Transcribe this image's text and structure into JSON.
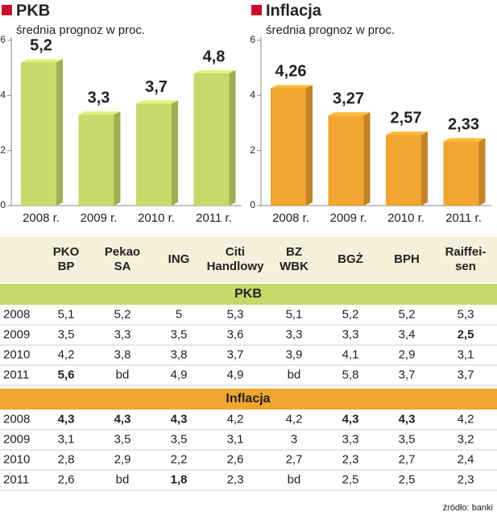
{
  "chart_data": [
    {
      "type": "bar",
      "title": "PKB",
      "subtitle": "średnia prognoz w proc.",
      "categories": [
        "2008 r.",
        "2009 r.",
        "2010 r.",
        "2011 r."
      ],
      "values": [
        5.2,
        3.3,
        3.7,
        4.8
      ],
      "value_labels": [
        "5,2",
        "3,3",
        "3,7",
        "4,8"
      ],
      "value_label_colors": [
        "#c8102e",
        "#222222",
        "#222222",
        "#222222"
      ],
      "color": "#c6d96a",
      "ylim": [
        0,
        6
      ],
      "yticks": [
        0,
        2,
        4,
        6
      ]
    },
    {
      "type": "bar",
      "title": "Inflacja",
      "subtitle": "średnia prognoz w proc.",
      "categories": [
        "2008 r.",
        "2009 r.",
        "2010 r.",
        "2011 r."
      ],
      "values": [
        4.26,
        3.27,
        2.57,
        2.33
      ],
      "value_labels": [
        "4,26",
        "3,27",
        "2,57",
        "2,33"
      ],
      "value_label_colors": [
        "#c8102e",
        "#222222",
        "#222222",
        "#222222"
      ],
      "color": "#f2a531",
      "ylim": [
        0,
        6
      ],
      "yticks": [
        0,
        2,
        4,
        6
      ]
    }
  ],
  "table": {
    "columns": [
      [
        "PKO",
        "BP"
      ],
      [
        "Pekao",
        "SA"
      ],
      [
        "ING"
      ],
      [
        "Citi",
        "Handlowy"
      ],
      [
        "BZ",
        "WBK"
      ],
      [
        "BGŻ"
      ],
      [
        "BPH"
      ],
      [
        "Raiffei-",
        "sen"
      ]
    ],
    "sections": [
      {
        "title": "PKB",
        "color": "#c6d96a",
        "rows": [
          {
            "year": "2008",
            "cells": [
              "5,1",
              "5,2",
              "5",
              "5,3",
              "5,1",
              "5,2",
              "5,2",
              "5,3"
            ]
          },
          {
            "year": "2009",
            "cells": [
              "3,5",
              "3,3",
              "3,5",
              "3,6",
              "3,3",
              "3,3",
              "3,4",
              {
                "text": "2,5",
                "color": "#c8102e"
              }
            ]
          },
          {
            "year": "2010",
            "cells": [
              "4,2",
              "3,8",
              "3,8",
              "3,7",
              "3,9",
              "4,1",
              "2,9",
              "3,1"
            ]
          },
          {
            "year": "2011",
            "cells": [
              {
                "text": "5,6",
                "color": "#3a8a3a"
              },
              "bd",
              "4,9",
              "4,9",
              "bd",
              "5,8",
              "3,7",
              "3,7"
            ]
          }
        ]
      },
      {
        "title": "Inflacja",
        "color": "#f2a531",
        "rows": [
          {
            "year": "2008",
            "cells": [
              {
                "text": "4,3",
                "color": "#c8102e"
              },
              {
                "text": "4,3",
                "color": "#c8102e"
              },
              {
                "text": "4,3",
                "color": "#c8102e"
              },
              "4,2",
              "4,2",
              {
                "text": "4,3",
                "color": "#c8102e"
              },
              {
                "text": "4,3",
                "color": "#c8102e"
              },
              "4,2"
            ]
          },
          {
            "year": "2009",
            "cells": [
              "3,1",
              "3,5",
              "3,5",
              "3,1",
              "3",
              "3,3",
              "3,5",
              "3,2"
            ]
          },
          {
            "year": "2010",
            "cells": [
              "2,8",
              "2,9",
              "2,2",
              "2,6",
              "2,7",
              "2,3",
              "2,7",
              "2,4"
            ]
          },
          {
            "year": "2011",
            "cells": [
              "2,6",
              "bd",
              {
                "text": "1,8",
                "color": "#3a8a3a"
              },
              "2,3",
              "bd",
              "2,5",
              "2,5",
              "2,3"
            ]
          }
        ]
      }
    ]
  },
  "source": "źródło: banki"
}
